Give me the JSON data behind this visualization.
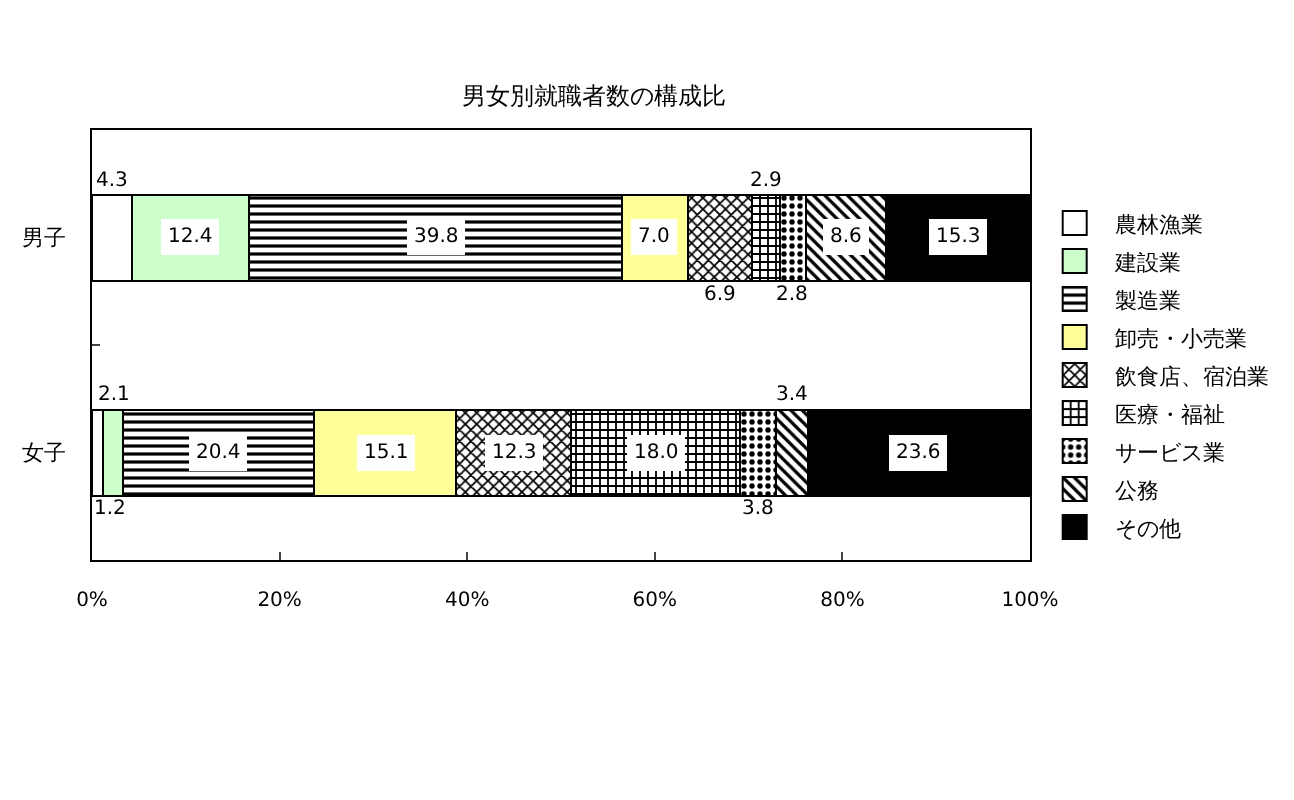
{
  "chart_data": {
    "type": "bar",
    "orientation": "horizontal",
    "stacked": true,
    "title": "男女別就職者数の構成比",
    "categories": [
      "男子",
      "女子"
    ],
    "series": [
      {
        "name": "農林漁業",
        "color": "#ffffff",
        "values": [
          4.3,
          1.2
        ],
        "value_labels": [
          "4.3",
          "1.2"
        ]
      },
      {
        "name": "建設業",
        "color": "#ccffcc",
        "values": [
          12.4,
          2.1
        ],
        "value_labels": [
          "12.4",
          "2.1"
        ]
      },
      {
        "name": "製造業",
        "color": "#000000",
        "values": [
          39.8,
          20.4
        ],
        "value_labels": [
          "39.8",
          "20.4"
        ]
      },
      {
        "name": "卸売・小売業",
        "color": "#ffff99",
        "values": [
          7.0,
          15.1
        ],
        "value_labels": [
          "7.0",
          "15.1"
        ]
      },
      {
        "name": "飲食店、宿泊業",
        "color": "#000000",
        "values": [
          6.9,
          12.3
        ],
        "value_labels": [
          "6.9",
          "12.3"
        ]
      },
      {
        "name": "医療・福祉",
        "color": "#000000",
        "values": [
          2.9,
          18.0
        ],
        "value_labels": [
          "2.9",
          "18.0"
        ]
      },
      {
        "name": "サービス業",
        "color": "#000000",
        "values": [
          2.8,
          3.8
        ],
        "value_labels": [
          "2.8",
          "3.8"
        ]
      },
      {
        "name": "公務",
        "color": "#000000",
        "values": [
          8.6,
          3.4
        ],
        "value_labels": [
          "8.6",
          "3.4"
        ]
      },
      {
        "name": "その他",
        "color": "#000000",
        "values": [
          15.3,
          23.6
        ],
        "value_labels": [
          "15.3",
          "23.6"
        ]
      }
    ],
    "xlim": [
      0,
      100
    ],
    "xticks": [
      {
        "value": 0,
        "label": "0%"
      },
      {
        "value": 20,
        "label": "20%"
      },
      {
        "value": 40,
        "label": "40%"
      },
      {
        "value": 60,
        "label": "60%"
      },
      {
        "value": 80,
        "label": "80%"
      },
      {
        "value": 100,
        "label": "100%"
      }
    ],
    "legend": "right"
  }
}
